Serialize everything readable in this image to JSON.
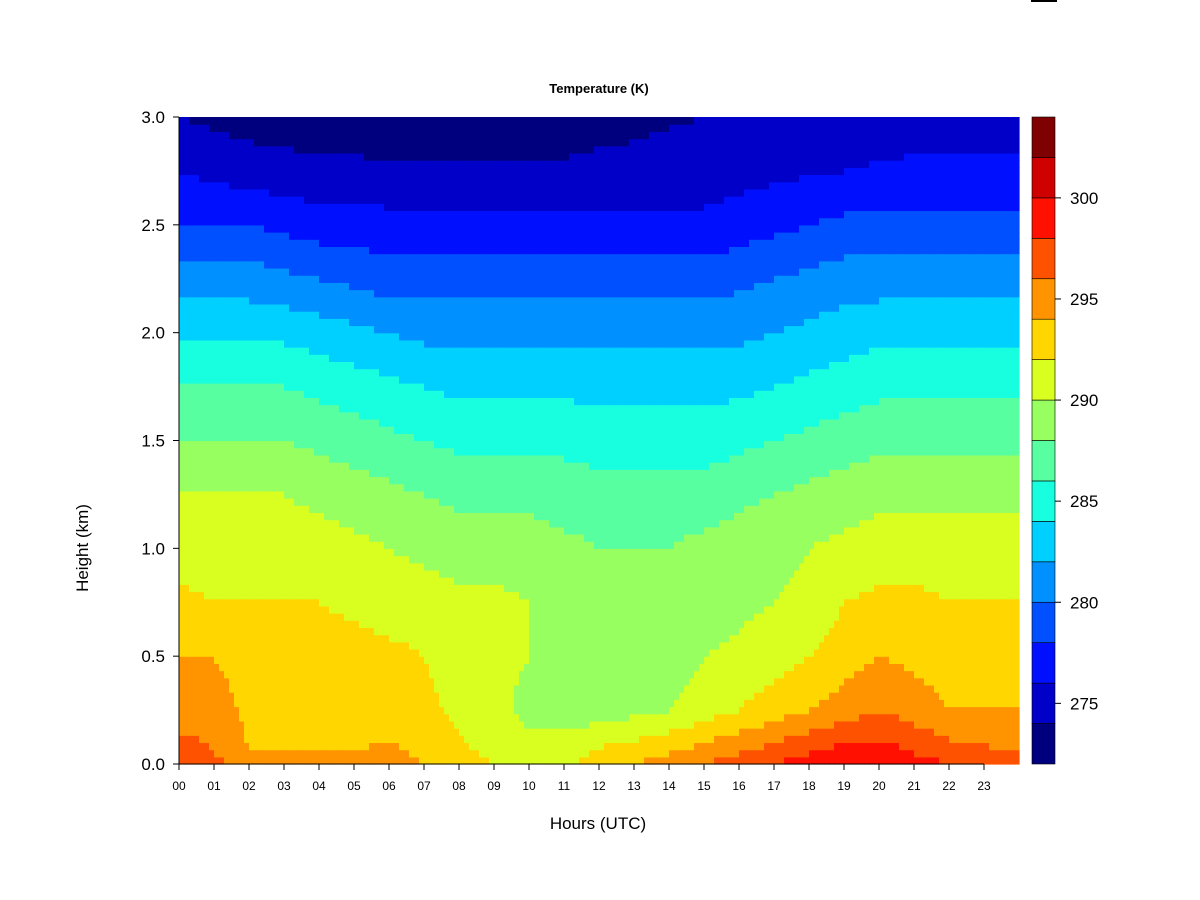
{
  "chart_data": {
    "type": "heatmap",
    "title": "Temperature (K)",
    "xlabel": "Hours (UTC)",
    "ylabel": "Height (km)",
    "xlim": [
      0,
      24
    ],
    "ylim": [
      0,
      3.0
    ],
    "x_ticks": [
      "00",
      "01",
      "02",
      "03",
      "04",
      "05",
      "06",
      "07",
      "08",
      "09",
      "10",
      "11",
      "12",
      "13",
      "14",
      "15",
      "16",
      "17",
      "18",
      "19",
      "20",
      "21",
      "22",
      "23"
    ],
    "y_ticks": [
      "0.0",
      "0.5",
      "1.0",
      "1.5",
      "2.0",
      "2.5",
      "3.0"
    ],
    "colorbar": {
      "levels": [
        272,
        274,
        276,
        278,
        280,
        282,
        284,
        286,
        288,
        290,
        292,
        294,
        296,
        298,
        300,
        302,
        304
      ],
      "colors": [
        "#00007f",
        "#0000c8",
        "#0010ff",
        "#0050ff",
        "#0090ff",
        "#00d0ff",
        "#18ffe0",
        "#58ffa0",
        "#98ff60",
        "#d8ff20",
        "#ffd600",
        "#ff9400",
        "#ff5200",
        "#ff1000",
        "#cf0000",
        "#7f0000"
      ],
      "tick_labels": [
        "275",
        "280",
        "285",
        "290",
        "295",
        "300"
      ],
      "tick_values": [
        275,
        280,
        285,
        290,
        295,
        300
      ]
    },
    "hours": [
      0,
      1,
      2,
      3,
      4,
      5,
      6,
      7,
      8,
      9,
      10,
      11,
      12,
      13,
      14,
      15,
      16,
      17,
      18,
      19,
      20,
      21,
      22,
      23,
      24
    ],
    "heights_km": [
      0.0,
      0.05,
      0.25,
      0.5,
      0.75,
      1.0,
      1.25,
      1.5,
      1.75,
      2.0,
      2.25,
      2.5,
      2.75,
      3.0
    ],
    "temperature_K": [
      [
        297.5,
        297.0,
        294.0,
        294.5,
        294.5,
        294.5,
        295.0,
        294.0,
        293.0,
        292.0,
        291.0,
        291.5,
        293.5,
        294.0,
        295.0,
        296.0,
        297.0,
        298.0,
        299.0,
        300.0,
        300.0,
        299.0,
        298.0,
        297.5,
        297.0
      ],
      [
        297.0,
        296.0,
        294.0,
        294.0,
        294.0,
        294.0,
        294.5,
        293.5,
        292.5,
        291.5,
        290.8,
        291.0,
        292.5,
        293.0,
        294.0,
        295.0,
        296.0,
        297.0,
        298.0,
        299.0,
        299.0,
        298.0,
        297.0,
        296.5,
        296.0
      ],
      [
        295.0,
        295.0,
        293.5,
        293.0,
        293.0,
        293.0,
        293.0,
        292.5,
        291.5,
        290.5,
        289.5,
        289.0,
        289.0,
        289.5,
        290.0,
        291.0,
        292.0,
        293.0,
        294.0,
        295.0,
        296.0,
        295.0,
        294.0,
        294.0,
        294.0
      ],
      [
        294.0,
        294.0,
        293.0,
        293.0,
        293.0,
        293.0,
        292.5,
        292.0,
        291.0,
        290.5,
        290.0,
        289.0,
        288.5,
        288.5,
        289.0,
        290.0,
        290.5,
        291.0,
        292.0,
        293.0,
        294.0,
        293.5,
        293.0,
        293.0,
        293.0
      ],
      [
        292.5,
        292.0,
        292.0,
        292.0,
        292.0,
        291.5,
        291.0,
        291.0,
        290.5,
        290.5,
        290.0,
        289.0,
        288.5,
        288.5,
        288.5,
        289.0,
        289.5,
        290.0,
        290.5,
        292.0,
        292.5,
        292.5,
        292.0,
        292.0,
        292.0
      ],
      [
        291.0,
        291.0,
        291.0,
        291.0,
        291.0,
        290.5,
        290.0,
        289.5,
        289.0,
        289.0,
        289.0,
        288.5,
        288.0,
        288.0,
        288.0,
        288.5,
        289.0,
        289.5,
        290.0,
        290.5,
        291.0,
        291.0,
        291.0,
        291.0,
        291.0
      ],
      [
        290.0,
        290.0,
        290.0,
        290.0,
        289.5,
        289.0,
        288.5,
        288.0,
        287.5,
        287.5,
        287.5,
        287.0,
        287.0,
        287.0,
        287.0,
        287.0,
        287.5,
        288.0,
        288.5,
        289.0,
        289.5,
        289.5,
        289.5,
        289.5,
        289.5
      ],
      [
        288.0,
        288.0,
        288.0,
        288.0,
        287.5,
        287.0,
        286.5,
        286.0,
        285.5,
        285.5,
        285.5,
        285.5,
        285.0,
        285.0,
        285.0,
        285.0,
        285.5,
        286.0,
        286.5,
        287.0,
        287.5,
        287.5,
        287.5,
        287.5,
        287.5
      ],
      [
        286.0,
        286.0,
        286.0,
        286.0,
        285.5,
        285.0,
        284.5,
        284.0,
        283.5,
        283.5,
        283.5,
        283.5,
        283.5,
        283.5,
        283.5,
        283.5,
        283.5,
        284.0,
        284.5,
        285.0,
        285.5,
        285.5,
        285.5,
        285.5,
        285.5
      ],
      [
        283.5,
        283.5,
        283.5,
        283.5,
        283.0,
        282.5,
        282.0,
        281.5,
        281.5,
        281.5,
        281.5,
        281.5,
        281.5,
        281.5,
        281.5,
        281.5,
        281.5,
        282.0,
        282.5,
        283.0,
        283.5,
        283.5,
        283.5,
        283.5,
        283.5
      ],
      [
        281.0,
        281.0,
        281.0,
        280.5,
        280.0,
        279.5,
        279.0,
        279.0,
        279.0,
        279.0,
        279.0,
        279.0,
        279.0,
        279.0,
        279.0,
        279.0,
        279.5,
        280.0,
        280.5,
        281.0,
        281.0,
        281.0,
        281.0,
        281.0,
        281.0
      ],
      [
        278.0,
        278.0,
        278.0,
        277.5,
        277.0,
        277.0,
        276.8,
        276.5,
        276.5,
        276.5,
        276.5,
        276.5,
        276.5,
        276.5,
        276.5,
        276.5,
        277.0,
        277.5,
        278.0,
        278.5,
        278.5,
        278.5,
        278.5,
        278.5,
        278.5
      ],
      [
        276.0,
        275.5,
        275.0,
        274.8,
        274.5,
        274.5,
        274.3,
        274.2,
        274.2,
        274.2,
        274.2,
        274.3,
        274.5,
        274.6,
        274.8,
        275.0,
        275.2,
        275.5,
        275.8,
        276.0,
        276.2,
        276.3,
        276.3,
        276.3,
        276.3
      ],
      [
        274.0,
        273.5,
        273.2,
        273.0,
        272.8,
        272.8,
        272.8,
        272.8,
        272.8,
        272.8,
        272.8,
        273.0,
        273.3,
        273.5,
        273.8,
        274.0,
        274.3,
        274.5,
        274.8,
        275.0,
        275.2,
        275.3,
        275.3,
        275.3,
        275.3
      ]
    ]
  }
}
